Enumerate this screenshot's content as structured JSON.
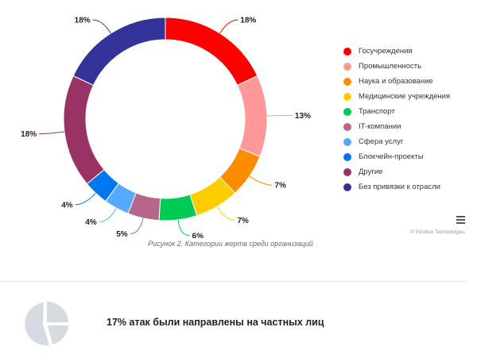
{
  "chart_data": {
    "type": "pie",
    "variant": "donut",
    "title": "Рисунок 2. Категории жертв среди организаций",
    "legend_position": "right",
    "categories": [
      "Госучреждения",
      "Промышленность",
      "Наука и образование",
      "Медицинские учреждения",
      "Транспорт",
      "IT-компании",
      "Сфера услуг",
      "Блокчейн-проекты",
      "Другие",
      "Без привязки к отрасли"
    ],
    "values": [
      18,
      13,
      7,
      7,
      6,
      5,
      4,
      4,
      18,
      18
    ],
    "labels": [
      "18%",
      "13%",
      "7%",
      "7%",
      "6%",
      "5%",
      "4%",
      "4%",
      "18%",
      "18%"
    ],
    "colors": [
      "#ff0000",
      "#ff9999",
      "#ff8c00",
      "#ffcc00",
      "#00cc55",
      "#b5668a",
      "#55aaff",
      "#0077ee",
      "#993366",
      "#333399"
    ]
  },
  "credit": "© Positive Technologies",
  "fact": "17% атак были направлены на частных лиц"
}
